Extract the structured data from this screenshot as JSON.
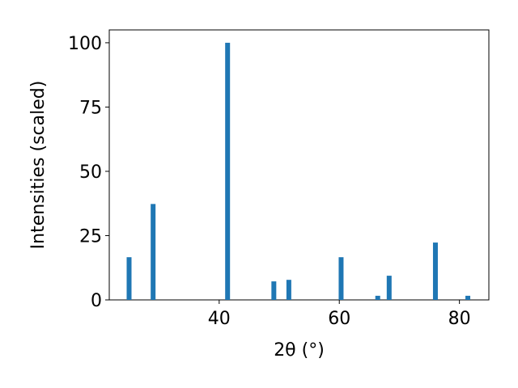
{
  "chart_data": {
    "type": "bar",
    "x": [
      25.0,
      29.0,
      41.4,
      49.1,
      51.6,
      60.3,
      66.4,
      68.3,
      76.0,
      81.4
    ],
    "values": [
      16.6,
      37.3,
      100,
      7.2,
      7.8,
      16.6,
      1.6,
      9.4,
      22.3,
      1.6
    ],
    "color": "#1f77b4",
    "xlabel": "2θ (°)",
    "ylabel": "Intensities (scaled)",
    "xlim": [
      21.7,
      84.9
    ],
    "ylim": [
      0,
      105
    ],
    "xticks": [
      40,
      60,
      80
    ],
    "yticks": [
      0,
      25,
      50,
      75,
      100
    ]
  }
}
